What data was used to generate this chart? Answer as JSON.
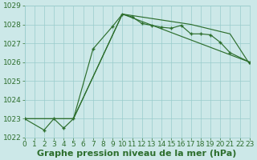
{
  "xlabel": "Graphe pression niveau de la mer (hPa)",
  "bg_color": "#cce8e8",
  "grid_color": "#99cccc",
  "line_color": "#2d6e2d",
  "xlim": [
    0,
    23
  ],
  "ylim": [
    1022,
    1029
  ],
  "yticks": [
    1022,
    1023,
    1024,
    1025,
    1026,
    1027,
    1028,
    1029
  ],
  "xticks": [
    0,
    1,
    2,
    3,
    4,
    5,
    6,
    7,
    8,
    9,
    10,
    11,
    12,
    13,
    14,
    15,
    16,
    17,
    18,
    19,
    20,
    21,
    22,
    23
  ],
  "series1_x": [
    0,
    2,
    3,
    4,
    5,
    7,
    9,
    10,
    11,
    12,
    13,
    14,
    15,
    16,
    17,
    18,
    19,
    20,
    21,
    23
  ],
  "series1_y": [
    1023.0,
    1022.4,
    1023.0,
    1022.5,
    1023.0,
    1026.7,
    1027.9,
    1028.55,
    1028.4,
    1028.05,
    1027.95,
    1027.85,
    1027.8,
    1027.95,
    1027.5,
    1027.5,
    1027.45,
    1027.05,
    1026.5,
    1026.0
  ],
  "series2_x": [
    0,
    5,
    10,
    23
  ],
  "series2_y": [
    1023.0,
    1023.0,
    1028.55,
    1026.0
  ],
  "series3_x": [
    0,
    5,
    10,
    17,
    21,
    23
  ],
  "series3_y": [
    1023.0,
    1023.0,
    1028.55,
    1028.0,
    1027.5,
    1025.9
  ],
  "xlabel_fontsize": 8,
  "tick_fontsize": 6.5
}
